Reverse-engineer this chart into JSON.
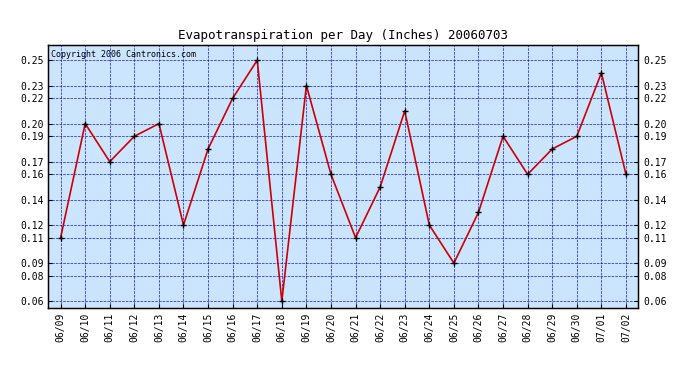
{
  "title": "Evapotranspiration per Day (Inches) 20060703",
  "copyright": "Copyright 2006 Cantronics.com",
  "dates": [
    "06/09",
    "06/10",
    "06/11",
    "06/12",
    "06/13",
    "06/14",
    "06/15",
    "06/16",
    "06/17",
    "06/18",
    "06/19",
    "06/20",
    "06/21",
    "06/22",
    "06/23",
    "06/24",
    "06/25",
    "06/26",
    "06/27",
    "06/28",
    "06/29",
    "06/30",
    "07/01",
    "07/02"
  ],
  "values": [
    0.11,
    0.2,
    0.17,
    0.19,
    0.2,
    0.12,
    0.18,
    0.22,
    0.25,
    0.06,
    0.23,
    0.16,
    0.11,
    0.15,
    0.21,
    0.12,
    0.09,
    0.13,
    0.19,
    0.16,
    0.18,
    0.19,
    0.24,
    0.16
  ],
  "ylim": [
    0.055,
    0.262
  ],
  "yticks": [
    0.06,
    0.08,
    0.09,
    0.11,
    0.12,
    0.14,
    0.16,
    0.17,
    0.19,
    0.2,
    0.22,
    0.23,
    0.25
  ],
  "line_color": "#cc0000",
  "marker_color": "#000000",
  "bg_color": "#cce5ff",
  "grid_color": "#0000cc",
  "border_color": "#000000",
  "title_fontsize": 9,
  "tick_fontsize": 7,
  "copyright_fontsize": 6
}
